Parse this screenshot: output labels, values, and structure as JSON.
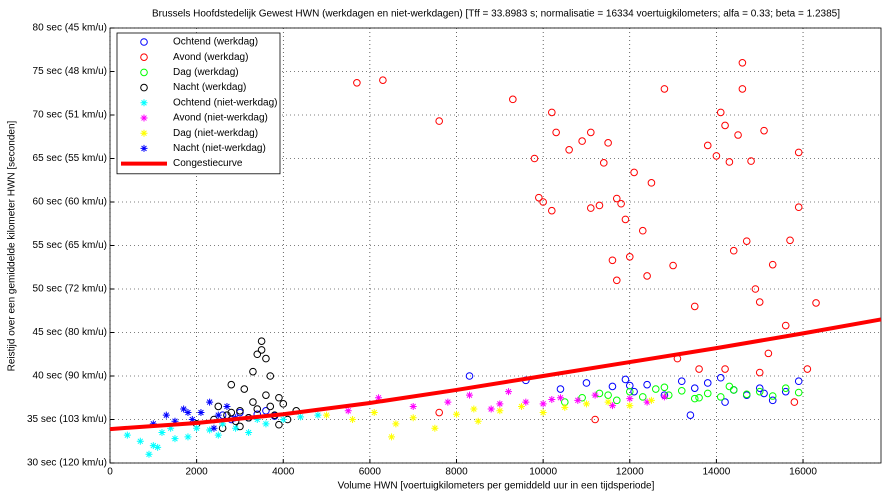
{
  "chart_data": {
    "type": "scatter",
    "title": "Brussels Hoofdstedelijk Gewest HWN (werkdagen en niet-werkdagen) [Tff = 33.8983 s; normalisatie = 16334 voertuigkilometers; alfa = 0.33; beta = 1.2385]",
    "xlabel": "Volume HWN [voertuigkilometers per gemiddeld uur in een tijdsperiode]",
    "ylabel": "Reistijd over een gemiddelde kilometer HWN [seconden]",
    "xlim": [
      0,
      17800
    ],
    "ylim": [
      30,
      80
    ],
    "xticks": [
      0,
      2000,
      4000,
      6000,
      8000,
      10000,
      12000,
      14000,
      16000
    ],
    "yticks": [
      {
        "value": 30,
        "label": "30 sec (120 km/u)"
      },
      {
        "value": 35,
        "label": "35 sec (103 km/u)"
      },
      {
        "value": 40,
        "label": "40 sec (90 km/u)"
      },
      {
        "value": 45,
        "label": "45 sec (80 km/u)"
      },
      {
        "value": 50,
        "label": "50 sec (72 km/u)"
      },
      {
        "value": 55,
        "label": "55 sec (65 km/u)"
      },
      {
        "value": 60,
        "label": "60 sec (60 km/u)"
      },
      {
        "value": 65,
        "label": "65 sec (55 km/u)"
      },
      {
        "value": 70,
        "label": "70 sec (51 km/u)"
      },
      {
        "value": 75,
        "label": "75 sec (48 km/u)"
      },
      {
        "value": 80,
        "label": "80 sec (45 km/u)"
      }
    ],
    "grid": true,
    "legend": "upper left",
    "series": [
      {
        "name": "Ochtend (werkdag)",
        "color": "#0000ff",
        "marker": "o",
        "x": [
          2600,
          2800,
          3000,
          3200,
          3400,
          3600,
          3800,
          8300,
          9600,
          10400,
          11000,
          11600,
          11900,
          12100,
          12400,
          12800,
          13200,
          13500,
          13800,
          14100,
          14400,
          14700,
          15000,
          15300,
          15600,
          15900,
          13400,
          12000,
          14200,
          15100
        ],
        "values": [
          35.5,
          35,
          35.8,
          35.2,
          35.6,
          36,
          35.4,
          40,
          39.5,
          38.5,
          39.2,
          38.8,
          39.6,
          38.2,
          39,
          37.8,
          39.4,
          38.6,
          39.2,
          39.8,
          38.4,
          37.8,
          38.6,
          37.2,
          38.2,
          39.4,
          35.5,
          38.9,
          37,
          38
        ]
      },
      {
        "name": "Avond (werkdag)",
        "color": "#ff0000",
        "marker": "o",
        "x": [
          5700,
          6300,
          7600,
          9300,
          9800,
          9900,
          10000,
          10200,
          10200,
          10300,
          10600,
          10900,
          11100,
          11100,
          11300,
          11400,
          11500,
          11600,
          11700,
          11700,
          11800,
          11900,
          12000,
          12100,
          12300,
          12400,
          12500,
          12800,
          13000,
          13100,
          13500,
          13600,
          13800,
          14000,
          14100,
          14200,
          14300,
          14400,
          14500,
          14600,
          14600,
          14700,
          14800,
          14900,
          15000,
          15100,
          15200,
          15300,
          15600,
          15700,
          15900,
          15900,
          16300,
          14200,
          15000,
          16100,
          11200,
          7600,
          15800
        ],
        "values": [
          73.7,
          74,
          69.3,
          71.8,
          65,
          60.5,
          60,
          59,
          70.3,
          68,
          66,
          67,
          59.3,
          68,
          59.6,
          64.5,
          66.8,
          53.3,
          60.4,
          51,
          59.8,
          58,
          53.7,
          63.4,
          56.7,
          51.5,
          62.2,
          73,
          52.7,
          42,
          48,
          40.8,
          66.5,
          65.3,
          70.3,
          68.8,
          64.6,
          54.4,
          67.7,
          76,
          73,
          55.5,
          64.7,
          50,
          48.5,
          68.2,
          42.6,
          52.8,
          45.8,
          55.6,
          65.7,
          59.4,
          48.4,
          40.8,
          40.4,
          40.8,
          35,
          35.8,
          37
        ]
      },
      {
        "name": "Dag (werkdag)",
        "color": "#00ff00",
        "marker": "o",
        "x": [
          10500,
          10900,
          11300,
          11700,
          12000,
          12300,
          12600,
          12900,
          13200,
          13500,
          13800,
          14100,
          14400,
          14700,
          15000,
          15300,
          15600,
          15900,
          11500,
          12800,
          13600,
          14300
        ],
        "values": [
          37,
          37.5,
          38,
          37.2,
          38.2,
          37.6,
          38.5,
          37.8,
          38.3,
          37.4,
          38,
          37.6,
          38.4,
          37.9,
          38.2,
          37.7,
          38.6,
          38.1,
          37.8,
          38.7,
          37.5,
          38.8
        ]
      },
      {
        "name": "Nacht (werkdag)",
        "color": "#000000",
        "marker": "o",
        "x": [
          2000,
          2400,
          2500,
          2600,
          2700,
          2800,
          2900,
          3000,
          3100,
          3200,
          3300,
          3400,
          3500,
          3600,
          3700,
          3800,
          3900,
          4000,
          4100,
          4300,
          2800,
          3000,
          3300,
          3500,
          3600,
          3700,
          3400,
          3900
        ],
        "values": [
          34.5,
          35,
          36.5,
          34,
          35.5,
          39,
          34.8,
          36,
          38.5,
          35.2,
          37,
          42.5,
          44,
          42,
          36.5,
          35.5,
          37.5,
          36.8,
          35,
          36,
          35.8,
          34.2,
          40.5,
          43,
          37.8,
          40,
          36.2,
          34.4
        ]
      },
      {
        "name": "Ochtend (niet-werkdag)",
        "color": "#00ffff",
        "marker": "*",
        "x": [
          400,
          700,
          900,
          1000,
          1200,
          1500,
          1800,
          2000,
          2300,
          2600,
          2900,
          3200,
          3600,
          4000,
          4400,
          4800,
          1100,
          1400,
          2500,
          3400
        ],
        "values": [
          33.2,
          32.5,
          31,
          32,
          33.5,
          32.8,
          33,
          34,
          33.8,
          34.5,
          34,
          33.5,
          34.5,
          35,
          35.3,
          35.5,
          31.8,
          34,
          33.2,
          35
        ]
      },
      {
        "name": "Avond (niet-werkdag)",
        "color": "#ff00ff",
        "marker": "*",
        "x": [
          5500,
          6200,
          7000,
          7800,
          8300,
          8800,
          9200,
          9600,
          10000,
          10400,
          10800,
          11200,
          11600,
          12000,
          12400,
          12800,
          9000,
          10200
        ],
        "values": [
          36,
          37.5,
          36.5,
          37,
          37.8,
          36.2,
          38.2,
          37,
          36.8,
          37.5,
          37.2,
          37.8,
          36.6,
          37.4,
          37,
          37.6,
          36.8,
          37.3
        ]
      },
      {
        "name": "Dag (niet-werkdag)",
        "color": "#ffff00",
        "marker": "*",
        "x": [
          5000,
          5600,
          6100,
          6500,
          7000,
          7500,
          8000,
          8500,
          9000,
          9500,
          10000,
          10500,
          11000,
          11500,
          12000,
          12500,
          6600,
          8400
        ],
        "values": [
          35.5,
          35,
          35.8,
          33,
          35.2,
          34,
          35.6,
          34.8,
          36,
          36.5,
          35.8,
          36.4,
          36.8,
          37,
          36.6,
          37.2,
          34.5,
          36.2
        ]
      },
      {
        "name": "Nacht (niet-werkdag)",
        "color": "#0000ff",
        "marker": "*",
        "x": [
          1000,
          1300,
          1500,
          1700,
          1900,
          2100,
          2300,
          2500,
          2700,
          2900,
          2400,
          1800
        ],
        "values": [
          34.5,
          35.5,
          34.8,
          36.2,
          35,
          35.8,
          37,
          35.5,
          36.5,
          35.2,
          34,
          35.8
        ]
      },
      {
        "name": "Congestiecurve",
        "color": "#ff0000",
        "type": "line",
        "x": [
          0,
          2000,
          4000,
          6000,
          8000,
          10000,
          12000,
          14000,
          16000,
          17800
        ],
        "values": [
          33.9,
          34.6,
          35.6,
          36.9,
          38.4,
          40,
          41.6,
          43.2,
          44.9,
          46.5
        ]
      }
    ]
  }
}
